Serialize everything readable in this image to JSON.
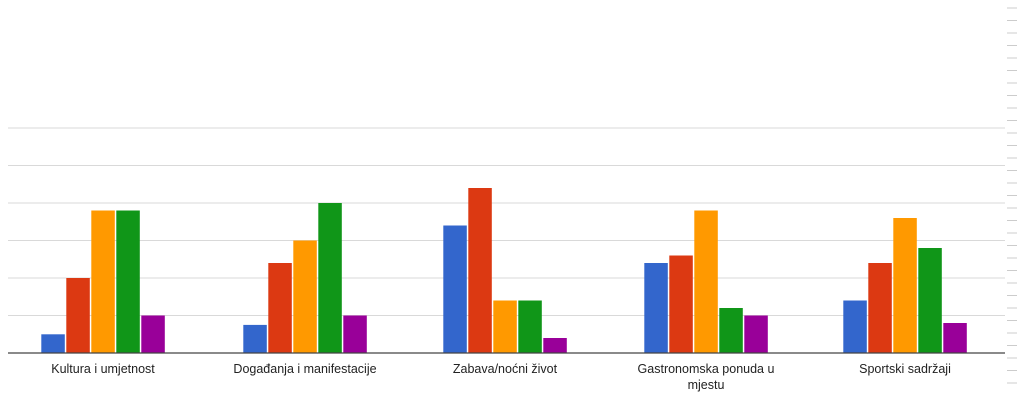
{
  "colors": {
    "background": "#ffffff",
    "gridline": "#d9d9d9",
    "axis": "#444444",
    "label_text": "#222222",
    "right_ticks": "#cccccc"
  },
  "chart_data": {
    "type": "bar",
    "title": "",
    "xlabel": "",
    "ylabel": "",
    "ylim": [
      0,
      12
    ],
    "grid": true,
    "legend": "none",
    "categories": [
      [
        "Kultura i umjetnost"
      ],
      [
        "Događanja i manifestacije"
      ],
      [
        "Zabava/noćni život"
      ],
      [
        "Gastronomska ponuda u",
        "mjestu"
      ],
      [
        "Sportski sadržaji"
      ]
    ],
    "series": [
      {
        "color": "#3366cc",
        "values": [
          1,
          1.5,
          6.8,
          4.8,
          2.8
        ]
      },
      {
        "color": "#dc3912",
        "values": [
          4,
          4.8,
          8.8,
          5.2,
          4.8
        ]
      },
      {
        "color": "#ff9900",
        "values": [
          7.6,
          6,
          2.8,
          7.6,
          7.2
        ]
      },
      {
        "color": "#109618",
        "values": [
          7.6,
          8,
          2.8,
          2.4,
          5.6
        ]
      },
      {
        "color": "#990099",
        "values": [
          2,
          2,
          0.8,
          2,
          1.6
        ]
      }
    ]
  }
}
